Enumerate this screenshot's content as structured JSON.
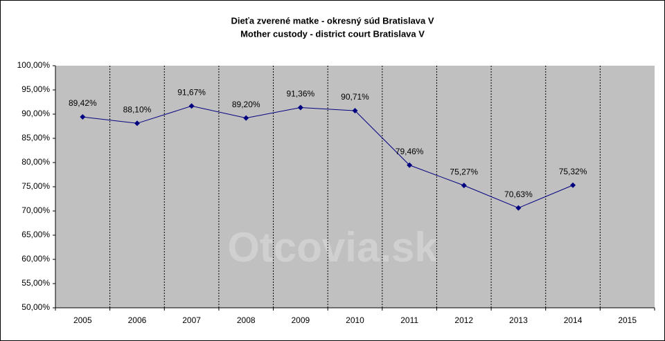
{
  "chart_data": {
    "type": "line",
    "title": "Dieťa zverené matke - okresný súd Bratislava V",
    "subtitle": "Mother custody - district court Bratislava V",
    "watermark": "Otcovia.sk",
    "categories": [
      "2005",
      "2006",
      "2007",
      "2008",
      "2009",
      "2010",
      "2011",
      "2012",
      "2013",
      "2014",
      "2015"
    ],
    "values": [
      89.42,
      88.1,
      91.67,
      89.2,
      91.36,
      90.71,
      79.46,
      75.27,
      70.63,
      75.32,
      null
    ],
    "value_labels": [
      "89,42%",
      "88,10%",
      "91,67%",
      "89,20%",
      "91,36%",
      "90,71%",
      "79,46%",
      "75,27%",
      "70,63%",
      "75,32%",
      null
    ],
    "color": "#000080",
    "ylim": [
      50,
      100
    ],
    "yticks": [
      {
        "value": 50,
        "label": "50,00%"
      },
      {
        "value": 55,
        "label": "55,00%"
      },
      {
        "value": 60,
        "label": "60,00%"
      },
      {
        "value": 65,
        "label": "65,00%"
      },
      {
        "value": 70,
        "label": "70,00%"
      },
      {
        "value": 75,
        "label": "75,00%"
      },
      {
        "value": 80,
        "label": "80,00%"
      },
      {
        "value": 85,
        "label": "85,00%"
      },
      {
        "value": 90,
        "label": "90,00%"
      },
      {
        "value": 95,
        "label": "95,00%"
      },
      {
        "value": 100,
        "label": "100,00%"
      }
    ],
    "grid": true
  }
}
